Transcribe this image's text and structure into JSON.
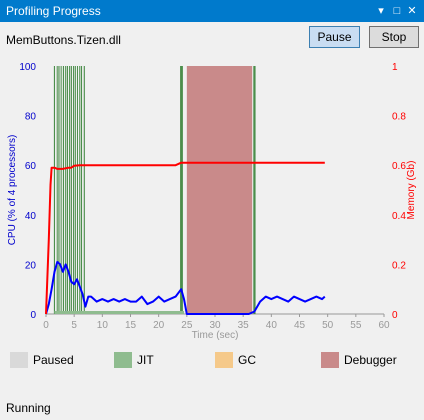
{
  "window": {
    "title": "Profiling Progress"
  },
  "header": {
    "module": "MemButtons.Tizen.dll",
    "pause_label": "Pause",
    "stop_label": "Stop"
  },
  "legend": [
    {
      "label": "Paused",
      "color": "#d9d9d9"
    },
    {
      "label": "JIT",
      "color": "#8fbc8f"
    },
    {
      "label": "GC",
      "color": "#f5c98a"
    },
    {
      "label": "Debugger",
      "color": "#c98a8a"
    }
  ],
  "status": "Running",
  "chart_data": {
    "type": "line",
    "xlabel": "Time (sec)",
    "ylabel": "CPU (% of 4 processors)",
    "ylabel2": "Memory (Gb)",
    "xlim": [
      0,
      60
    ],
    "ylim": [
      0,
      100
    ],
    "ylim2": [
      0,
      1
    ],
    "xticks": [
      0,
      5,
      10,
      15,
      20,
      25,
      30,
      35,
      40,
      45,
      50,
      55,
      60
    ],
    "yticks": [
      0,
      20,
      40,
      60,
      80,
      100
    ],
    "yticks2": [
      "0",
      "0.2",
      "0.4",
      "0.6",
      "0.8",
      "1"
    ],
    "colors": {
      "cpu": "#0000ff",
      "memory": "#ff0000",
      "jit": "#2e7d2e",
      "debugger": "#c98a8a"
    },
    "jit_intervals": [
      [
        1.4,
        1.6
      ],
      [
        1.9,
        2.0
      ],
      [
        2.2,
        2.4
      ],
      [
        2.6,
        2.7
      ],
      [
        3.0,
        3.2
      ],
      [
        3.4,
        3.5
      ],
      [
        3.7,
        3.9
      ],
      [
        4.1,
        4.2
      ],
      [
        4.4,
        4.6
      ],
      [
        4.8,
        4.9
      ],
      [
        5.1,
        5.3
      ],
      [
        5.5,
        5.6
      ],
      [
        5.9,
        6.0
      ],
      [
        6.2,
        6.4
      ],
      [
        6.7,
        6.9
      ],
      [
        23.8,
        24.3
      ],
      [
        36.8,
        37.2
      ]
    ],
    "debugger_intervals": [
      [
        25.0,
        36.6
      ]
    ],
    "series": [
      {
        "name": "CPU",
        "axis": "left",
        "points": [
          [
            0,
            0
          ],
          [
            0.5,
            4
          ],
          [
            1,
            10
          ],
          [
            1.5,
            17
          ],
          [
            2,
            21
          ],
          [
            2.5,
            20
          ],
          [
            3,
            17
          ],
          [
            3.5,
            20
          ],
          [
            4,
            17
          ],
          [
            4.5,
            13
          ],
          [
            5,
            12
          ],
          [
            5.5,
            14
          ],
          [
            6,
            11
          ],
          [
            6.5,
            8
          ],
          [
            7,
            3
          ],
          [
            7.5,
            7
          ],
          [
            8,
            7
          ],
          [
            9,
            5
          ],
          [
            10,
            6
          ],
          [
            11,
            5
          ],
          [
            12,
            6
          ],
          [
            13,
            5
          ],
          [
            14,
            6
          ],
          [
            15,
            5
          ],
          [
            16,
            5
          ],
          [
            17,
            7
          ],
          [
            18,
            4
          ],
          [
            19,
            5
          ],
          [
            20,
            7
          ],
          [
            21,
            5
          ],
          [
            22,
            6
          ],
          [
            23,
            7
          ],
          [
            24,
            10
          ],
          [
            24.5,
            6
          ],
          [
            25,
            0
          ],
          [
            30,
            0
          ],
          [
            36,
            0
          ],
          [
            37,
            1
          ],
          [
            38,
            5
          ],
          [
            39,
            7
          ],
          [
            40,
            6
          ],
          [
            41,
            7
          ],
          [
            42,
            6
          ],
          [
            43,
            5
          ],
          [
            44,
            7
          ],
          [
            45,
            6
          ],
          [
            46,
            5
          ],
          [
            47,
            6
          ],
          [
            48,
            7
          ],
          [
            49,
            6
          ],
          [
            49.5,
            7
          ]
        ]
      },
      {
        "name": "Memory",
        "axis": "right",
        "points": [
          [
            0,
            0
          ],
          [
            0.5,
            0.3
          ],
          [
            0.8,
            0.52
          ],
          [
            1,
            0.59
          ],
          [
            1.5,
            0.59
          ],
          [
            2,
            0.585
          ],
          [
            3,
            0.585
          ],
          [
            4,
            0.59
          ],
          [
            4.5,
            0.59
          ],
          [
            5,
            0.598
          ],
          [
            6,
            0.6
          ],
          [
            10,
            0.6
          ],
          [
            20,
            0.6
          ],
          [
            23,
            0.6
          ],
          [
            24,
            0.61
          ],
          [
            30,
            0.61
          ],
          [
            40,
            0.61
          ],
          [
            49.5,
            0.61
          ]
        ]
      }
    ]
  }
}
